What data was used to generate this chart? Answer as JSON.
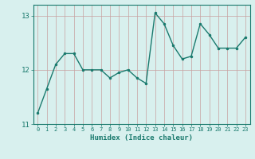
{
  "x": [
    0,
    1,
    2,
    3,
    4,
    5,
    6,
    7,
    8,
    9,
    10,
    11,
    12,
    13,
    14,
    15,
    16,
    17,
    18,
    19,
    20,
    21,
    22,
    23
  ],
  "y": [
    11.2,
    11.65,
    12.1,
    12.3,
    12.3,
    12.0,
    12.0,
    12.0,
    11.85,
    11.95,
    12.0,
    11.85,
    11.75,
    13.05,
    12.85,
    12.45,
    12.2,
    12.25,
    12.85,
    12.65,
    12.4,
    12.4,
    12.4,
    12.6
  ],
  "xlabel": "Humidex (Indice chaleur)",
  "ylim": [
    11.0,
    13.2
  ],
  "xlim": [
    -0.5,
    23.5
  ],
  "yticks": [
    11,
    12,
    13
  ],
  "xticks": [
    0,
    1,
    2,
    3,
    4,
    5,
    6,
    7,
    8,
    9,
    10,
    11,
    12,
    13,
    14,
    15,
    16,
    17,
    18,
    19,
    20,
    21,
    22,
    23
  ],
  "line_color": "#1a7a6e",
  "marker_color": "#1a7a6e",
  "bg_color": "#d8f0ee",
  "grid_color": "#c0ddd9",
  "tick_color": "#1a7a6e",
  "label_color": "#1a7a6e"
}
